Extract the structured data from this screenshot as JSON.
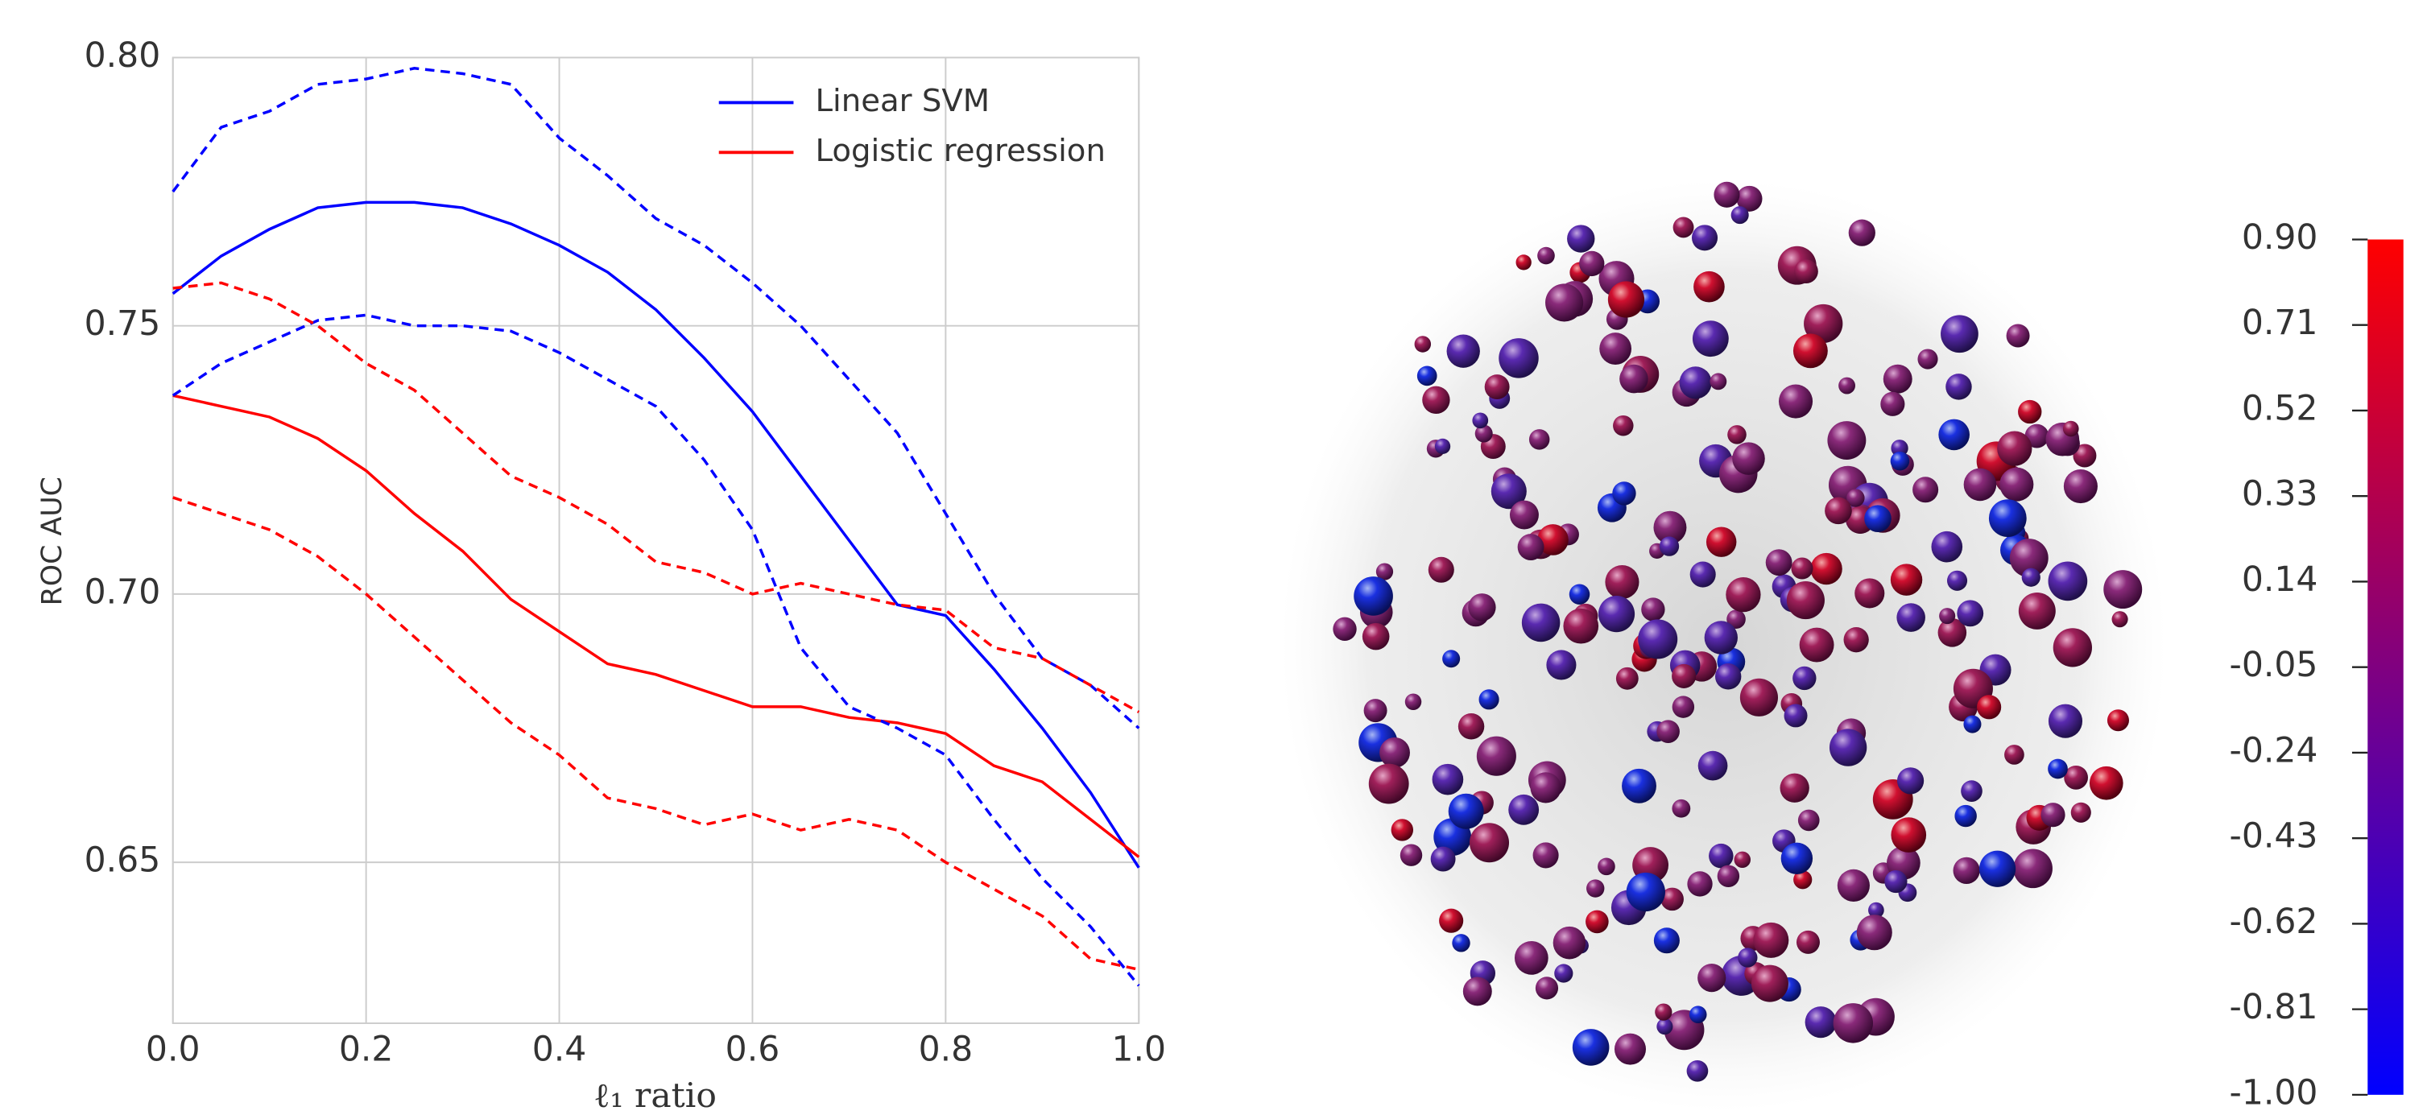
{
  "chart_data": [
    {
      "type": "line",
      "xlabel": "ℓ₁ ratio",
      "ylabel": "ROC AUC",
      "x": [
        0,
        0.05,
        0.1,
        0.15,
        0.2,
        0.25,
        0.3,
        0.35,
        0.4,
        0.45,
        0.5,
        0.55,
        0.6,
        0.65,
        0.7,
        0.75,
        0.8,
        0.85,
        0.9,
        0.95,
        1.0
      ],
      "xlim": [
        0,
        1.0
      ],
      "xticks": [
        {
          "value": 0,
          "label": "0.0"
        },
        {
          "value": 0.2,
          "label": "0.2"
        },
        {
          "value": 0.4,
          "label": "0.4"
        },
        {
          "value": 0.6,
          "label": "0.6"
        },
        {
          "value": 0.8,
          "label": "0.8"
        },
        {
          "value": 1.0,
          "label": "1.0"
        }
      ],
      "ylim": [
        0.62,
        0.8
      ],
      "yticks": [
        {
          "value": 0.65,
          "label": "0.65"
        },
        {
          "value": 0.7,
          "label": "0.70"
        },
        {
          "value": 0.75,
          "label": "0.75"
        },
        {
          "value": 0.8,
          "label": "0.80"
        }
      ],
      "grid": true,
      "legend": "upper right",
      "series": [
        {
          "name": "Linear SVM",
          "color": "#0000ff",
          "values": [
            0.756,
            0.763,
            0.768,
            0.772,
            0.773,
            0.773,
            0.772,
            0.769,
            0.765,
            0.76,
            0.753,
            0.744,
            0.734,
            0.722,
            0.71,
            0.698,
            0.696,
            0.686,
            0.675,
            0.663,
            0.649
          ]
        },
        {
          "name": "Logistic regression",
          "color": "#ff0000",
          "values": [
            0.737,
            0.735,
            0.733,
            0.729,
            0.723,
            0.715,
            0.708,
            0.699,
            0.693,
            0.687,
            0.685,
            0.682,
            0.679,
            0.679,
            0.677,
            0.676,
            0.674,
            0.668,
            0.665,
            0.658,
            0.651
          ]
        },
        {
          "color": "#0000ff",
          "dashed": true,
          "values": [
            0.775,
            0.787,
            0.79,
            0.795,
            0.796,
            0.798,
            0.797,
            0.795,
            0.785,
            0.778,
            0.77,
            0.765,
            0.758,
            0.75,
            0.74,
            0.73,
            0.715,
            0.7,
            0.688,
            0.683,
            0.675
          ]
        },
        {
          "color": "#0000ff",
          "dashed": true,
          "values": [
            0.737,
            0.743,
            0.747,
            0.751,
            0.752,
            0.75,
            0.75,
            0.749,
            0.745,
            0.74,
            0.735,
            0.725,
            0.712,
            0.69,
            0.679,
            0.675,
            0.67,
            0.658,
            0.647,
            0.638,
            0.627
          ]
        },
        {
          "color": "#ff0000",
          "dashed": true,
          "values": [
            0.757,
            0.758,
            0.755,
            0.75,
            0.743,
            0.738,
            0.73,
            0.722,
            0.718,
            0.713,
            0.706,
            0.704,
            0.7,
            0.702,
            0.7,
            0.698,
            0.697,
            0.69,
            0.688,
            0.683,
            0.678
          ]
        },
        {
          "color": "#ff0000",
          "dashed": true,
          "values": [
            0.718,
            0.715,
            0.712,
            0.707,
            0.7,
            0.692,
            0.684,
            0.676,
            0.67,
            0.662,
            0.66,
            0.657,
            0.659,
            0.656,
            0.658,
            0.656,
            0.65,
            0.645,
            0.64,
            0.632,
            0.63
          ]
        }
      ]
    },
    {
      "type": "colorbar",
      "colors": [
        "#0000ff",
        "#800080",
        "#ff0000"
      ],
      "ylim": [
        -1.0,
        0.9
      ],
      "yticks": [
        {
          "value": 0.9,
          "label": "0.90"
        },
        0.71,
        0.52,
        0.33,
        0.14,
        -0.05,
        -0.24,
        -0.43,
        -0.62,
        -0.81,
        {
          "value": -1.0,
          "label": "-1.00"
        }
      ]
    }
  ]
}
